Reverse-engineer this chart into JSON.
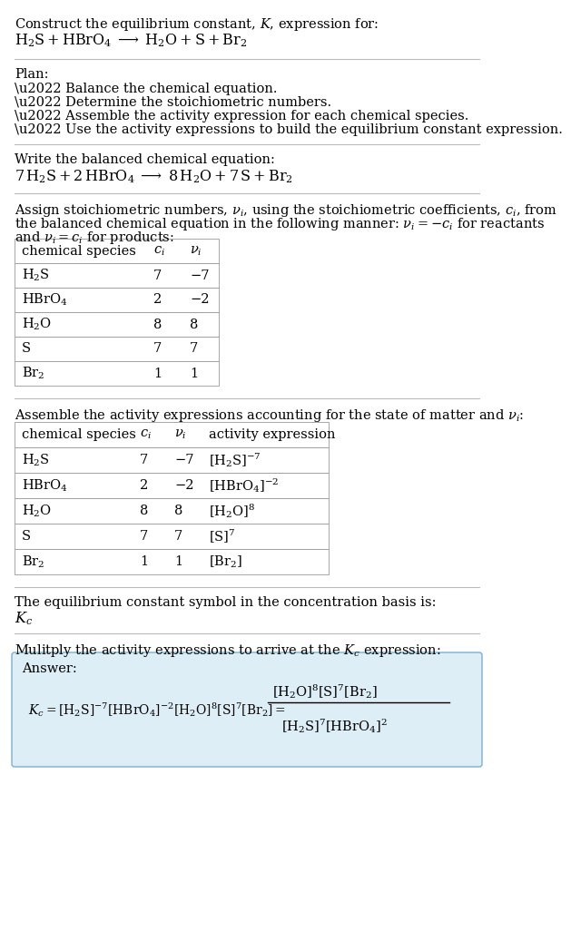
{
  "bg_color": "#ffffff",
  "text_color": "#000000",
  "table_border": "#999999",
  "answer_bg": "#ddeef6",
  "answer_border": "#7ab0cc",
  "section1_title": "Construct the equilibrium constant, $K$, expression for:",
  "section1_reaction": "$\\mathrm{H_2S + HBrO_4 \\;\\longrightarrow\\; H_2O + S + Br_2}$",
  "plan_title": "Plan:",
  "plan_bullets": [
    "\\u2022 Balance the chemical equation.",
    "\\u2022 Determine the stoichiometric numbers.",
    "\\u2022 Assemble the activity expression for each chemical species.",
    "\\u2022 Use the activity expressions to build the equilibrium constant expression."
  ],
  "balanced_title": "Write the balanced chemical equation:",
  "balanced_eq": "$\\mathrm{7\\,H_2S + 2\\,HBrO_4 \\;\\longrightarrow\\; 8\\,H_2O + 7\\,S + Br_2}$",
  "stoich_intro_line1": "Assign stoichiometric numbers, $\\nu_i$, using the stoichiometric coefficients, $c_i$, from",
  "stoich_intro_line2": "the balanced chemical equation in the following manner: $\\nu_i = -c_i$ for reactants",
  "stoich_intro_line3": "and $\\nu_i = c_i$ for products:",
  "table1_headers": [
    "chemical species",
    "$c_i$",
    "$\\nu_i$"
  ],
  "table1_rows": [
    [
      "$\\mathrm{H_2S}$",
      "7",
      "−7"
    ],
    [
      "$\\mathrm{HBrO_4}$",
      "2",
      "−2"
    ],
    [
      "$\\mathrm{H_2O}$",
      "8",
      "8"
    ],
    [
      "S",
      "7",
      "7"
    ],
    [
      "$\\mathrm{Br_2}$",
      "1",
      "1"
    ]
  ],
  "activity_intro": "Assemble the activity expressions accounting for the state of matter and $\\nu_i$:",
  "table2_headers": [
    "chemical species",
    "$c_i$",
    "$\\nu_i$",
    "activity expression"
  ],
  "table2_rows": [
    [
      "$\\mathrm{H_2S}$",
      "7",
      "−7",
      "$[\\mathrm{H_2S}]^{-7}$"
    ],
    [
      "$\\mathrm{HBrO_4}$",
      "2",
      "−2",
      "$[\\mathrm{HBrO_4}]^{-2}$"
    ],
    [
      "$\\mathrm{H_2O}$",
      "8",
      "8",
      "$[\\mathrm{H_2O}]^{8}$"
    ],
    [
      "S",
      "7",
      "7",
      "$[\\mathrm{S}]^{7}$"
    ],
    [
      "$\\mathrm{Br_2}$",
      "1",
      "1",
      "$[\\mathrm{Br_2}]$"
    ]
  ],
  "kc_intro": "The equilibrium constant symbol in the concentration basis is:",
  "kc_symbol": "$K_c$",
  "multiply_intro": "Mulitply the activity expressions to arrive at the $K_c$ expression:",
  "answer_label": "Answer:",
  "hline_color": "#bbbbbb",
  "fontsize": 10.5
}
